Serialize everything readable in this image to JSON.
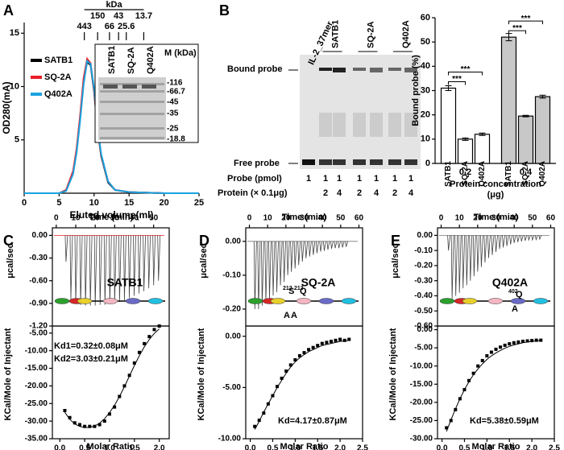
{
  "panel_labels": [
    "A",
    "B",
    "C",
    "D",
    "E"
  ],
  "gel_A": {
    "lane_labels": [
      "SATB1",
      "SQ-2A",
      "Q402A"
    ],
    "lane_colors": [
      "#000000",
      "#e8202a",
      "#1aa3e0"
    ],
    "marker_header": "M (kDa)",
    "markers": [
      "-116",
      "-66.7",
      "-45",
      "-35",
      "-25",
      "-18.8"
    ]
  },
  "gel_B": {
    "lane_labels": [
      "IL-2_37mer",
      "SATB1",
      "SQ-2A",
      "Q402A"
    ],
    "band_labels": [
      "Bound probe",
      "Free probe"
    ],
    "row_labels": [
      "Probe (pmol)",
      "Protein (× 0.1μg)"
    ],
    "probe": [
      1,
      1,
      1,
      1,
      1,
      1,
      1
    ],
    "protein": [
      null,
      2,
      4,
      2,
      4,
      2,
      4
    ]
  },
  "chart_data": [
    {
      "type": "line",
      "xlabel": "Eluted volume(ml)",
      "ylabel": "OD280(mA)",
      "xlim": [
        0,
        25
      ],
      "xticks": [
        0,
        5,
        10,
        15,
        20,
        25
      ],
      "ylim": [
        0,
        16
      ],
      "yticks": [
        5,
        10,
        15
      ],
      "x": [
        0,
        5,
        6,
        7,
        7.5,
        8,
        8.5,
        9,
        9.5,
        10,
        10.5,
        11,
        12,
        13,
        15,
        20,
        25
      ],
      "series": [
        {
          "name": "SATB1",
          "color": "#000000",
          "values": [
            0,
            0,
            0.3,
            2,
            4,
            7,
            10.5,
            12.3,
            12,
            9.5,
            6,
            3.5,
            1,
            0.3,
            0.1,
            0,
            0
          ]
        },
        {
          "name": "SQ-2A",
          "color": "#e8202a",
          "values": [
            0,
            0,
            0.3,
            2.1,
            4.2,
            7.3,
            10.8,
            12.6,
            12.2,
            9.6,
            6.1,
            3.6,
            1.1,
            0.3,
            0.1,
            0,
            0
          ]
        },
        {
          "name": "Q402A",
          "color": "#1aa3e0",
          "values": [
            0,
            0,
            0.2,
            1.8,
            3.8,
            6.8,
            10.2,
            12.4,
            12.1,
            9.8,
            6.3,
            3.7,
            1.1,
            0.3,
            0.1,
            0,
            0
          ]
        }
      ],
      "size_markers": {
        "title": "kDa",
        "markers": [
          {
            "label": "443",
            "x": 8.6
          },
          {
            "label": "150",
            "x": 10.5
          },
          {
            "label": "66",
            "x": 12.2
          },
          {
            "label": "43",
            "x": 13.5
          },
          {
            "label": "25.6",
            "x": 14.6
          },
          {
            "label": "13.7",
            "x": 17.1
          }
        ]
      }
    },
    {
      "type": "bar",
      "ylabel": "Bound probe (%)",
      "xlabel": [
        "Protein concentration",
        "(μg)"
      ],
      "categories": [
        "0.2",
        "0.4"
      ],
      "category_colors": [
        "#ffffff",
        "#c8c8c8"
      ],
      "ylim": [
        0,
        60
      ],
      "yticks": [
        0,
        10,
        20,
        30,
        40,
        50,
        60
      ],
      "series": [
        {
          "name": "SATB1",
          "values": [
            31,
            52
          ],
          "errors": [
            1,
            1.5
          ]
        },
        {
          "name": "SQ-2A",
          "values": [
            10,
            19.5
          ],
          "errors": [
            0.5,
            0.3
          ]
        },
        {
          "name": "Q402A",
          "values": [
            12,
            27.5
          ],
          "errors": [
            0.5,
            0.6
          ]
        }
      ],
      "significance": [
        "***",
        "***",
        "***",
        "***"
      ]
    },
    {
      "type": "itc",
      "protein": "SATB1",
      "mutation_labels": [],
      "thermogram": {
        "xlabel": "Time (min)",
        "ylabel": "μcal/sec",
        "xlim": [
          -2,
          58
        ],
        "xticks": [
          0,
          10,
          20,
          30,
          40,
          50
        ],
        "ylim": [
          -1.2,
          0.1
        ],
        "yticks": [
          {
            "value": 0,
            "label": "0.00"
          },
          {
            "value": -0.3,
            "label": "-0.30"
          },
          {
            "value": -0.6,
            "label": "-0.60"
          },
          {
            "value": -0.9,
            "label": "-0.90"
          },
          {
            "value": -1.2,
            "label": "-1.20"
          }
        ],
        "times": [
          5,
          7.5,
          10,
          12.5,
          15,
          17.5,
          20,
          22.5,
          25,
          27.5,
          30,
          32.5,
          35,
          37.5,
          40,
          42.5,
          45,
          47.5,
          50,
          52.5
        ],
        "peaks": [
          -0.35,
          -0.85,
          -0.9,
          -0.92,
          -0.93,
          -0.93,
          -0.93,
          -0.92,
          -0.92,
          -0.9,
          -0.9,
          -0.88,
          -0.86,
          -0.83,
          -0.8,
          -0.77,
          -0.74,
          -0.7,
          -0.66,
          -0.6
        ]
      },
      "isotherm": {
        "xlabel": "Molar Ratio",
        "ylabel": "KCal/Mole of Injectant",
        "xlim": [
          -0.15,
          2.2
        ],
        "xticks": [
          {
            "value": 0,
            "label": "0.0"
          },
          {
            "value": 0.5,
            "label": "0.5"
          },
          {
            "value": 1,
            "label": "1.0"
          },
          {
            "value": 1.5,
            "label": "1.5"
          },
          {
            "value": 2,
            "label": "2.0"
          }
        ],
        "ylim": [
          -35,
          -3
        ],
        "yticks": [
          {
            "value": -5,
            "label": "-5.00"
          },
          {
            "value": -10,
            "label": "-10.00"
          },
          {
            "value": -15,
            "label": "-15.00"
          },
          {
            "value": -20,
            "label": "-20.00"
          },
          {
            "value": -25,
            "label": "-25.00"
          },
          {
            "value": -30,
            "label": "-30.00"
          },
          {
            "value": -35,
            "label": "-35.00"
          }
        ],
        "x": [
          0.1,
          0.2,
          0.3,
          0.4,
          0.5,
          0.6,
          0.7,
          0.8,
          0.9,
          1.0,
          1.1,
          1.2,
          1.3,
          1.4,
          1.5,
          1.6,
          1.7,
          1.8,
          1.9,
          2.0
        ],
        "values": [
          -27,
          -29,
          -30.5,
          -31,
          -31.5,
          -31.5,
          -31.5,
          -31,
          -30,
          -28,
          -26,
          -23,
          -20,
          -17,
          -13.5,
          -10.5,
          -8,
          -6,
          -4,
          -3
        ],
        "fit": [
          -27.5,
          -29.5,
          -30.8,
          -31.5,
          -31.8,
          -31.8,
          -31.4,
          -30.6,
          -29.3,
          -27.6,
          -25.5,
          -23,
          -20.2,
          -17.2,
          -14.2,
          -11.4,
          -8.9,
          -6.8,
          -5.1,
          -3.8
        ],
        "annotations": [
          "Kd1=0.32±0.08μM",
          "Kd2=3.03±0.21μM"
        ]
      }
    },
    {
      "type": "itc",
      "protein": "SQ-2A",
      "mutation_labels": [
        "212",
        "S",
        "213",
        "Q",
        "A",
        "A"
      ],
      "thermogram": {
        "xlabel": "Time (min)",
        "ylabel": "μcal/sec",
        "xlim": [
          -2,
          62
        ],
        "xticks": [
          0,
          10,
          20,
          30,
          40,
          50,
          60
        ],
        "ylim": [
          -0.25,
          0.04
        ],
        "yticks": [
          {
            "value": 0,
            "label": "0.00"
          },
          {
            "value": -0.1,
            "label": "-0.10"
          },
          {
            "value": -0.2,
            "label": "-0.20"
          }
        ],
        "times": [
          3,
          5,
          7,
          9,
          11,
          13,
          15,
          17,
          19,
          21,
          23,
          25,
          27,
          29,
          31,
          33,
          35,
          37,
          39,
          41,
          43,
          45,
          47,
          49,
          51,
          53
        ],
        "peaks": [
          -0.2,
          -0.2,
          -0.19,
          -0.18,
          -0.17,
          -0.16,
          -0.15,
          -0.13,
          -0.12,
          -0.1,
          -0.09,
          -0.08,
          -0.07,
          -0.06,
          -0.05,
          -0.045,
          -0.04,
          -0.035,
          -0.03,
          -0.028,
          -0.025,
          -0.022,
          -0.02,
          -0.02,
          -0.018,
          -0.016
        ]
      },
      "isotherm": {
        "xlabel": "Molar Ratio",
        "ylabel": "KCal/Mole of Injectant",
        "xlim": [
          -0.1,
          2.5
        ],
        "xticks": [
          {
            "value": 0,
            "label": "0.0"
          },
          {
            "value": 0.5,
            "label": "0.5"
          },
          {
            "value": 1,
            "label": "1.0"
          },
          {
            "value": 1.5,
            "label": "1.5"
          },
          {
            "value": 2,
            "label": "2.0"
          },
          {
            "value": 2.5,
            "label": "2.5"
          }
        ],
        "ylim": [
          -10,
          1
        ],
        "yticks": [
          {
            "value": 0,
            "label": "0.00"
          },
          {
            "value": -5,
            "label": "-5.00"
          },
          {
            "value": -10,
            "label": "-10.00"
          }
        ],
        "x": [
          0.1,
          0.2,
          0.3,
          0.4,
          0.5,
          0.6,
          0.7,
          0.8,
          0.9,
          1.0,
          1.1,
          1.2,
          1.3,
          1.4,
          1.5,
          1.6,
          1.7,
          1.8,
          1.9,
          2.0,
          2.1,
          2.2
        ],
        "values": [
          -8.8,
          -8.2,
          -7.5,
          -6.6,
          -5.8,
          -4.9,
          -4.1,
          -3.4,
          -2.8,
          -2.3,
          -1.9,
          -1.6,
          -1.3,
          -1.1,
          -0.9,
          -0.7,
          -0.6,
          -0.5,
          -0.4,
          -0.3,
          -0.4,
          -0.3
        ],
        "fit": [
          -9.1,
          -8.3,
          -7.4,
          -6.6,
          -5.8,
          -5.0,
          -4.3,
          -3.6,
          -3.0,
          -2.5,
          -2.1,
          -1.8,
          -1.5,
          -1.3,
          -1.1,
          -0.9,
          -0.8,
          -0.7,
          -0.6,
          -0.5,
          -0.45,
          -0.4
        ],
        "annotations": [
          "Kd=4.17±0.87μM"
        ]
      }
    },
    {
      "type": "itc",
      "protein": "Q402A",
      "mutation_labels": [
        "402",
        "Q",
        "A"
      ],
      "thermogram": {
        "xlabel": "Time (min)",
        "ylabel": "μcal/sec",
        "xlim": [
          -2,
          62
        ],
        "xticks": [
          0,
          10,
          20,
          30,
          40,
          50,
          60
        ],
        "ylim": [
          -0.6,
          0.05
        ],
        "yticks": [
          {
            "value": 0,
            "label": "0.00"
          },
          {
            "value": -0.1,
            "label": "-0.10"
          },
          {
            "value": -0.2,
            "label": "-0.20"
          },
          {
            "value": -0.3,
            "label": "-0.30"
          },
          {
            "value": -0.4,
            "label": "-0.40"
          },
          {
            "value": -0.5,
            "label": "-0.50"
          },
          {
            "value": -0.6,
            "label": "-0.60"
          }
        ],
        "times": [
          4,
          6,
          8,
          10,
          12,
          14,
          16,
          18,
          20,
          22,
          24,
          26,
          28,
          30,
          32,
          34,
          36,
          38,
          40,
          42,
          44,
          46,
          48,
          50,
          52,
          54
        ],
        "peaks": [
          -0.1,
          -0.42,
          -0.4,
          -0.38,
          -0.35,
          -0.33,
          -0.3,
          -0.27,
          -0.24,
          -0.21,
          -0.18,
          -0.15,
          -0.13,
          -0.11,
          -0.09,
          -0.08,
          -0.07,
          -0.06,
          -0.05,
          -0.045,
          -0.04,
          -0.035,
          -0.03,
          -0.03,
          -0.028,
          -0.025
        ]
      },
      "isotherm": {
        "xlabel": "Molar Ratio",
        "ylabel": "KCal/Mole of Injectant",
        "xlim": [
          -0.1,
          2.5
        ],
        "xticks": [
          {
            "value": 0,
            "label": "0.0"
          },
          {
            "value": 0.5,
            "label": "0.5"
          },
          {
            "value": 1,
            "label": "1.0"
          },
          {
            "value": 1.5,
            "label": "1.5"
          },
          {
            "value": 2,
            "label": "2.0"
          },
          {
            "value": 2.5,
            "label": "2.5"
          }
        ],
        "ylim": [
          -30,
          1
        ],
        "yticks": [
          {
            "value": 0,
            "label": "0.00"
          },
          {
            "value": -5,
            "label": "-5.00"
          },
          {
            "value": -10,
            "label": "-10.00"
          },
          {
            "value": -15,
            "label": "-15.00"
          },
          {
            "value": -20,
            "label": "-20.00"
          },
          {
            "value": -25,
            "label": "-25.00"
          },
          {
            "value": -30,
            "label": "-30.00"
          }
        ],
        "x": [
          0.1,
          0.2,
          0.3,
          0.4,
          0.5,
          0.6,
          0.7,
          0.8,
          0.9,
          1.0,
          1.1,
          1.2,
          1.3,
          1.4,
          1.5,
          1.6,
          1.7,
          1.8,
          1.9,
          2.0,
          2.1,
          2.2
        ],
        "values": [
          -27,
          -25,
          -22,
          -19,
          -16.5,
          -14,
          -12,
          -10,
          -8.5,
          -7.2,
          -6.2,
          -5.4,
          -4.8,
          -4.3,
          -3.9,
          -3.6,
          -3.4,
          -3.2,
          -3.1,
          -3.0,
          -2.9,
          -2.9
        ],
        "fit": [
          -28,
          -24.8,
          -21.8,
          -19,
          -16.5,
          -14.3,
          -12.4,
          -10.8,
          -9.4,
          -8.2,
          -7.2,
          -6.4,
          -5.7,
          -5.1,
          -4.6,
          -4.2,
          -3.9,
          -3.6,
          -3.4,
          -3.2,
          -3.1,
          -3.0
        ],
        "annotations": [
          "Kd=5.38±0.59μM"
        ]
      }
    }
  ]
}
